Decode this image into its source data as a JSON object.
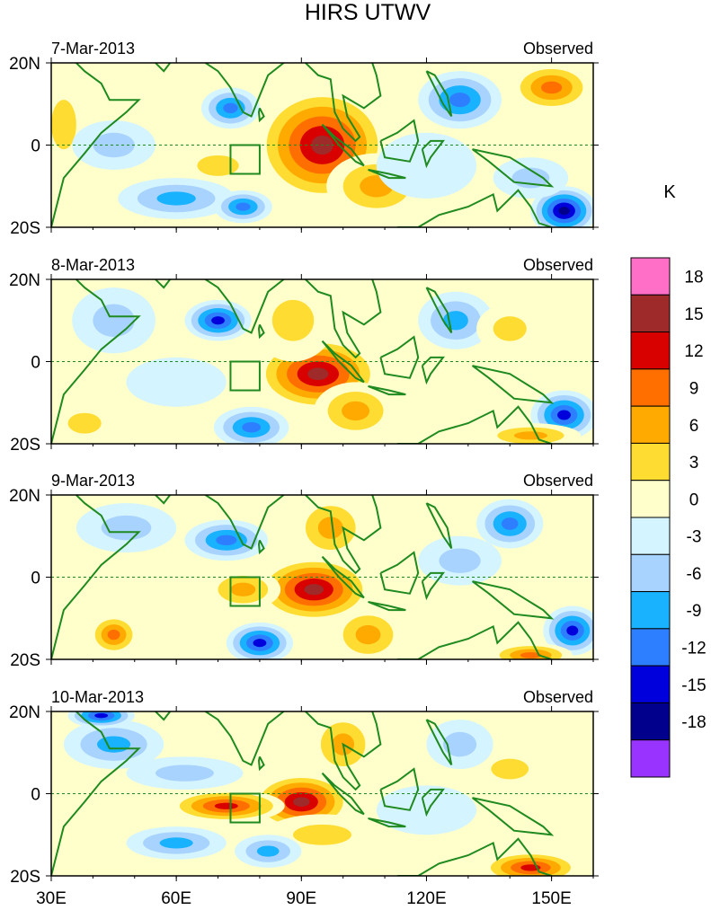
{
  "figure": {
    "title": "HIRS UTWV",
    "colorbar_unit": "K"
  },
  "chart_data": {
    "type": "heatmap",
    "title": "HIRS UTWV",
    "x_ticks": [
      "30E",
      "60E",
      "90E",
      "120E",
      "150E"
    ],
    "x_tick_values": [
      30,
      60,
      90,
      120,
      150
    ],
    "y_ticks": [
      "20N",
      "0",
      "20S"
    ],
    "y_tick_values": [
      20,
      0,
      -20
    ],
    "xlim": [
      30,
      160
    ],
    "ylim": [
      -20,
      20
    ],
    "box_region": {
      "lon": [
        73,
        80
      ],
      "lat": [
        -7,
        0
      ]
    },
    "colorbar": {
      "label": "K",
      "levels": [
        "18",
        "15",
        "12",
        "9",
        "6",
        "3",
        "0",
        "-3",
        "-6",
        "-9",
        "-12",
        "-15",
        "-18"
      ],
      "colors": [
        "#ff6ec7",
        "#9e2a2a",
        "#d90000",
        "#ff6f00",
        "#ffaa00",
        "#ffdc32",
        "#ffffcc",
        "#d4f4ff",
        "#a9d3ff",
        "#19b2ff",
        "#2e7fff",
        "#0000dd",
        "#00008c",
        "#9933ff"
      ]
    },
    "panels": [
      {
        "date": "7-Mar-2013",
        "label": "Observed",
        "blobs": [
          {
            "lon": 95,
            "lat": 0,
            "rx": 16,
            "ry": 14,
            "v": 17
          },
          {
            "lon": 108,
            "lat": -10,
            "rx": 12,
            "ry": 8,
            "v": 9
          },
          {
            "lon": 150,
            "lat": 14,
            "rx": 10,
            "ry": 6,
            "v": 12
          },
          {
            "lon": 70,
            "lat": -5,
            "rx": 10,
            "ry": 5,
            "v": 4
          },
          {
            "lon": 33,
            "lat": 5,
            "rx": 6,
            "ry": 12,
            "v": 6
          },
          {
            "lon": 45,
            "lat": 0,
            "rx": 10,
            "ry": 6,
            "v": -4
          },
          {
            "lon": 73,
            "lat": 9,
            "rx": 7,
            "ry": 5,
            "v": -12
          },
          {
            "lon": 60,
            "lat": -13,
            "rx": 14,
            "ry": 5,
            "v": -8
          },
          {
            "lon": 76,
            "lat": -15,
            "rx": 7,
            "ry": 4,
            "v": -12
          },
          {
            "lon": 128,
            "lat": 11,
            "rx": 10,
            "ry": 7,
            "v": -10
          },
          {
            "lon": 153,
            "lat": -16,
            "rx": 8,
            "ry": 6,
            "v": -17
          },
          {
            "lon": 145,
            "lat": -8,
            "rx": 9,
            "ry": 5,
            "v": -6
          },
          {
            "lon": 120,
            "lat": -5,
            "rx": 12,
            "ry": 8,
            "v": -1
          }
        ]
      },
      {
        "date": "8-Mar-2013",
        "label": "Observed",
        "blobs": [
          {
            "lon": 94,
            "lat": -3,
            "rx": 15,
            "ry": 9,
            "v": 17
          },
          {
            "lon": 88,
            "lat": 10,
            "rx": 10,
            "ry": 10,
            "v": 5
          },
          {
            "lon": 103,
            "lat": -12,
            "rx": 10,
            "ry": 7,
            "v": 8
          },
          {
            "lon": 70,
            "lat": 10,
            "rx": 8,
            "ry": 5,
            "v": -13
          },
          {
            "lon": 45,
            "lat": 10,
            "rx": 10,
            "ry": 8,
            "v": -6
          },
          {
            "lon": 78,
            "lat": -16,
            "rx": 9,
            "ry": 5,
            "v": -12
          },
          {
            "lon": 127,
            "lat": 10,
            "rx": 9,
            "ry": 7,
            "v": -8
          },
          {
            "lon": 153,
            "lat": -13,
            "rx": 8,
            "ry": 6,
            "v": -13
          },
          {
            "lon": 140,
            "lat": 8,
            "rx": 8,
            "ry": 6,
            "v": 4
          },
          {
            "lon": 38,
            "lat": -15,
            "rx": 8,
            "ry": 5,
            "v": 5
          },
          {
            "lon": 145,
            "lat": -18,
            "rx": 12,
            "ry": 3,
            "v": 9
          },
          {
            "lon": 60,
            "lat": -5,
            "rx": 12,
            "ry": 6,
            "v": -2
          }
        ]
      },
      {
        "date": "9-Mar-2013",
        "label": "Observed",
        "blobs": [
          {
            "lon": 93,
            "lat": -3,
            "rx": 14,
            "ry": 8,
            "v": 16
          },
          {
            "lon": 97,
            "lat": 12,
            "rx": 9,
            "ry": 8,
            "v": 8
          },
          {
            "lon": 106,
            "lat": -14,
            "rx": 9,
            "ry": 7,
            "v": 7
          },
          {
            "lon": 76,
            "lat": -3,
            "rx": 9,
            "ry": 5,
            "v": 8
          },
          {
            "lon": 72,
            "lat": 9,
            "rx": 10,
            "ry": 5,
            "v": -10
          },
          {
            "lon": 48,
            "lat": 12,
            "rx": 12,
            "ry": 6,
            "v": -5
          },
          {
            "lon": 80,
            "lat": -16,
            "rx": 8,
            "ry": 5,
            "v": -13
          },
          {
            "lon": 140,
            "lat": 13,
            "rx": 8,
            "ry": 6,
            "v": -12
          },
          {
            "lon": 155,
            "lat": -13,
            "rx": 7,
            "ry": 6,
            "v": -14
          },
          {
            "lon": 45,
            "lat": -14,
            "rx": 6,
            "ry": 5,
            "v": 10
          },
          {
            "lon": 128,
            "lat": 4,
            "rx": 10,
            "ry": 6,
            "v": -5
          },
          {
            "lon": 145,
            "lat": -19,
            "rx": 10,
            "ry": 3,
            "v": 10
          }
        ]
      },
      {
        "date": "10-Mar-2013",
        "label": "Observed",
        "blobs": [
          {
            "lon": 90,
            "lat": -2,
            "rx": 12,
            "ry": 7,
            "v": 16
          },
          {
            "lon": 72,
            "lat": -3,
            "rx": 14,
            "ry": 4,
            "v": 13
          },
          {
            "lon": 100,
            "lat": 12,
            "rx": 8,
            "ry": 8,
            "v": 8
          },
          {
            "lon": 95,
            "lat": -10,
            "rx": 14,
            "ry": 5,
            "v": 6
          },
          {
            "lon": 45,
            "lat": 12,
            "rx": 12,
            "ry": 6,
            "v": -9
          },
          {
            "lon": 42,
            "lat": 19,
            "rx": 8,
            "ry": 3,
            "v": -13
          },
          {
            "lon": 62,
            "lat": 5,
            "rx": 14,
            "ry": 4,
            "v": -4
          },
          {
            "lon": 60,
            "lat": -12,
            "rx": 12,
            "ry": 4,
            "v": -8
          },
          {
            "lon": 82,
            "lat": -14,
            "rx": 8,
            "ry": 4,
            "v": -9
          },
          {
            "lon": 145,
            "lat": -18,
            "rx": 12,
            "ry": 4,
            "v": 14
          },
          {
            "lon": 140,
            "lat": 6,
            "rx": 9,
            "ry": 5,
            "v": 6
          },
          {
            "lon": 128,
            "lat": 12,
            "rx": 8,
            "ry": 6,
            "v": -5
          },
          {
            "lon": 120,
            "lat": -4,
            "rx": 12,
            "ry": 6,
            "v": -2
          }
        ]
      }
    ]
  }
}
